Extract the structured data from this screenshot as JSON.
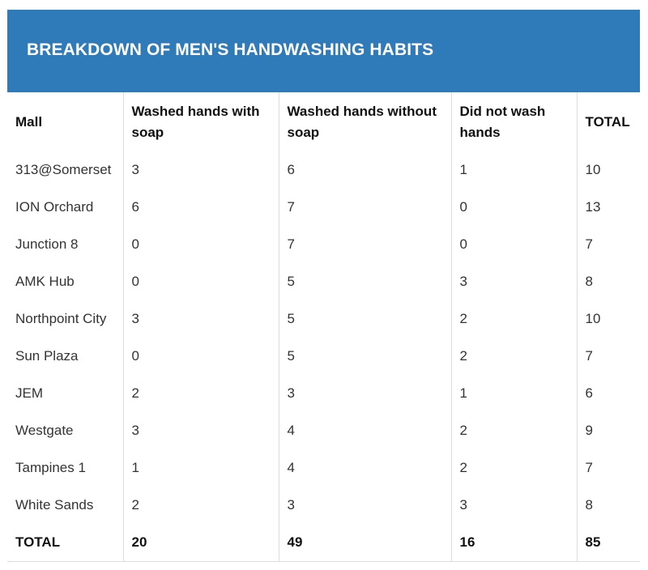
{
  "header": {
    "title": "BREAKDOWN OF MEN'S HANDWASHING HABITS",
    "background_color": "#2f7ab9"
  },
  "chart_data": {
    "type": "table",
    "title": "BREAKDOWN OF MEN'S HANDWASHING HABITS",
    "columns": [
      "Mall",
      "Washed hands with soap",
      "Washed hands without soap",
      "Did not wash hands",
      "TOTAL"
    ],
    "rows": [
      [
        "313@Somerset",
        "3",
        "6",
        "1",
        "10"
      ],
      [
        "ION Orchard",
        "6",
        "7",
        "0",
        "13"
      ],
      [
        "Junction 8",
        "0",
        "7",
        "0",
        "7"
      ],
      [
        "AMK Hub",
        "0",
        "5",
        "3",
        "8"
      ],
      [
        "Northpoint City",
        "3",
        "5",
        "2",
        "10"
      ],
      [
        "Sun Plaza",
        "0",
        "5",
        "2",
        "7"
      ],
      [
        "JEM",
        "2",
        "3",
        "1",
        "6"
      ],
      [
        "Westgate",
        "3",
        "4",
        "2",
        "9"
      ],
      [
        "Tampines 1",
        "1",
        "4",
        "2",
        "7"
      ],
      [
        "White Sands",
        "2",
        "3",
        "3",
        "8"
      ]
    ],
    "totals": [
      "TOTAL",
      "20",
      "49",
      "16",
      "85"
    ]
  }
}
